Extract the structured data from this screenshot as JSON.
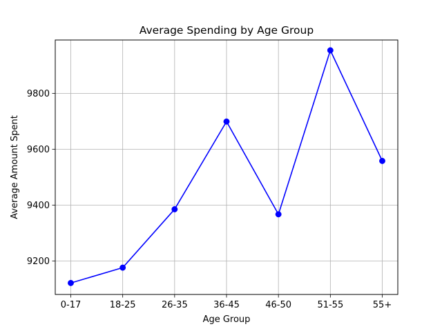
{
  "chart_data": {
    "type": "line",
    "title": "Average Spending by Age Group",
    "xlabel": "Age Group",
    "ylabel": "Average Amount Spent",
    "categories": [
      "0-17",
      "18-25",
      "26-35",
      "36-45",
      "46-50",
      "51-55",
      "55+"
    ],
    "series": [
      {
        "values": [
          9121,
          9176,
          9385,
          9699,
          9367,
          9954,
          9558
        ],
        "color": "#0000ff",
        "marker": "circle"
      }
    ],
    "ylim": [
      9080,
      9991
    ],
    "yticks": [
      9200,
      9400,
      9600,
      9800
    ],
    "grid": true,
    "legend": "none"
  }
}
